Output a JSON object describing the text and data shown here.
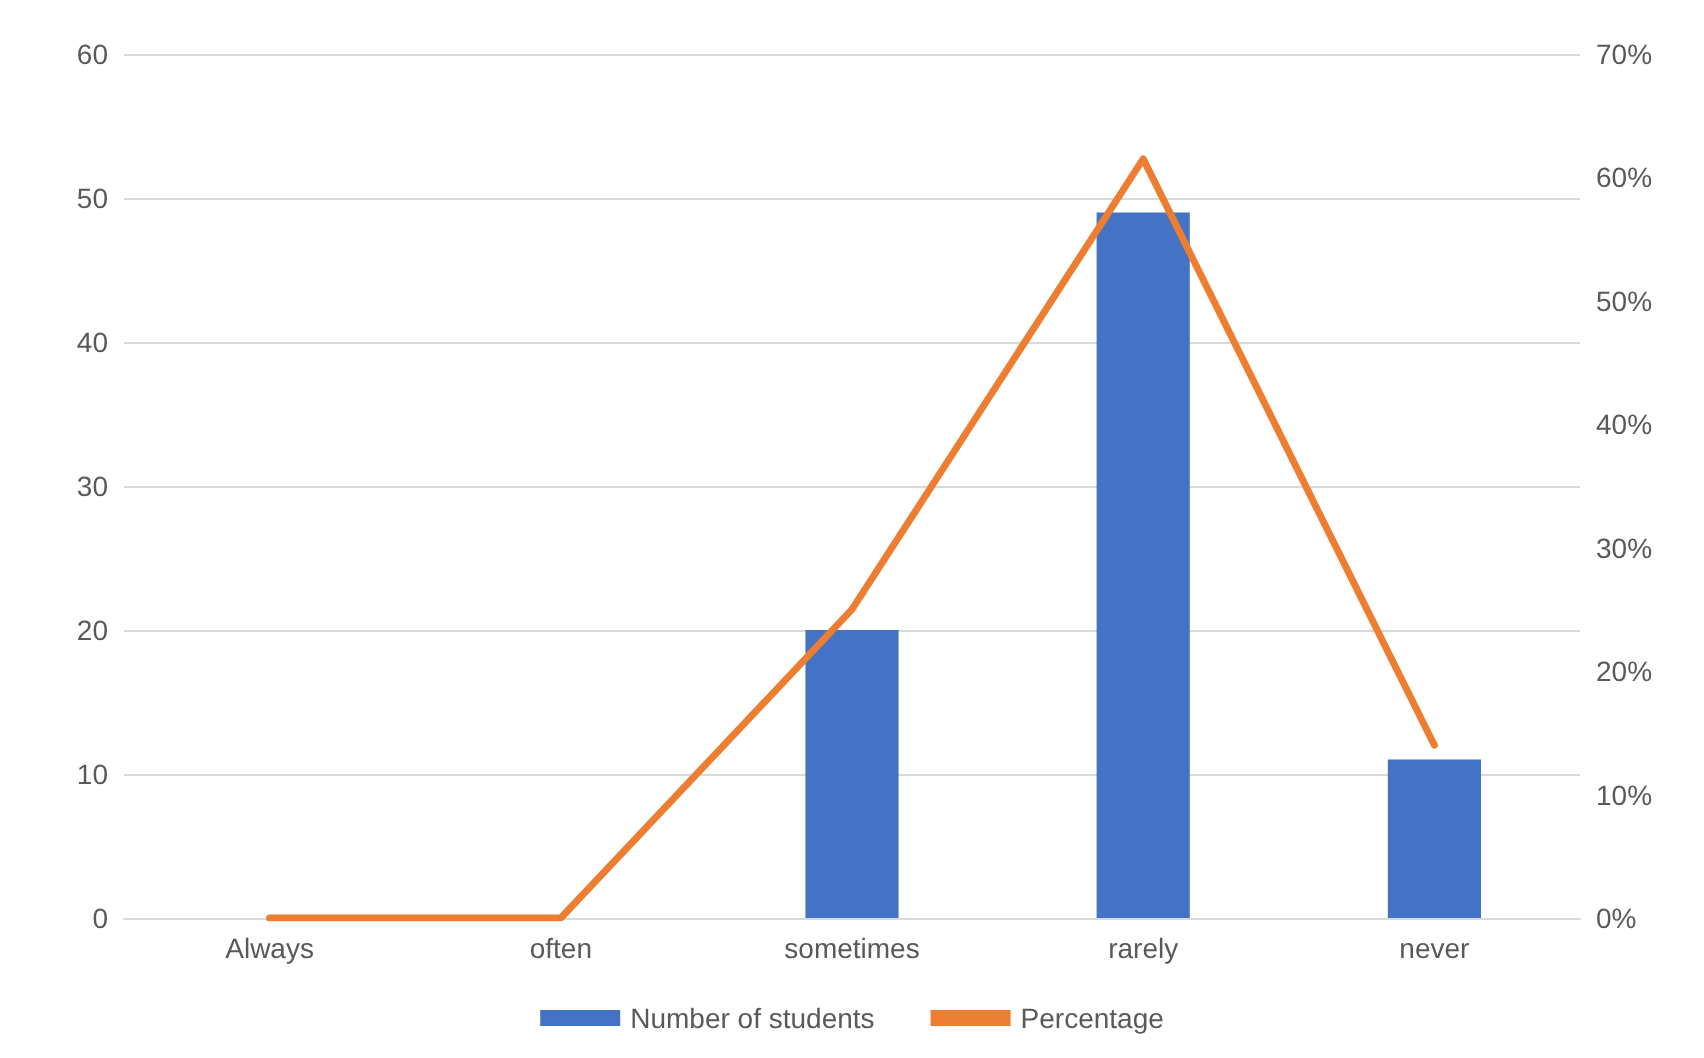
{
  "chart_data": {
    "type": "bar",
    "categories": [
      "Always",
      "often",
      "sometimes",
      "rarely",
      "never"
    ],
    "series": [
      {
        "name": "Number of students",
        "color": "#4472c4",
        "values": [
          0,
          0,
          20,
          49,
          11
        ]
      },
      {
        "name": "Percentage",
        "type": "line",
        "axis": "y2",
        "color": "#ed7d31",
        "values": [
          0,
          0,
          25,
          61.5,
          14
        ]
      }
    ],
    "ylim": [
      0,
      60
    ],
    "yticks": [
      0,
      10,
      20,
      30,
      40,
      50,
      60
    ],
    "y2lim": [
      0,
      70
    ],
    "y2ticks": [
      {
        "value": 0,
        "label": "0%"
      },
      {
        "value": 10,
        "label": "10%"
      },
      {
        "value": 20,
        "label": "20%"
      },
      {
        "value": 30,
        "label": "30%"
      },
      {
        "value": 40,
        "label": "40%"
      },
      {
        "value": 50,
        "label": "50%"
      },
      {
        "value": 60,
        "label": "60%"
      },
      {
        "value": 70,
        "label": "70%"
      }
    ],
    "grid": "y",
    "legend": "bottom",
    "marker": "none",
    "line_style": "solid"
  }
}
